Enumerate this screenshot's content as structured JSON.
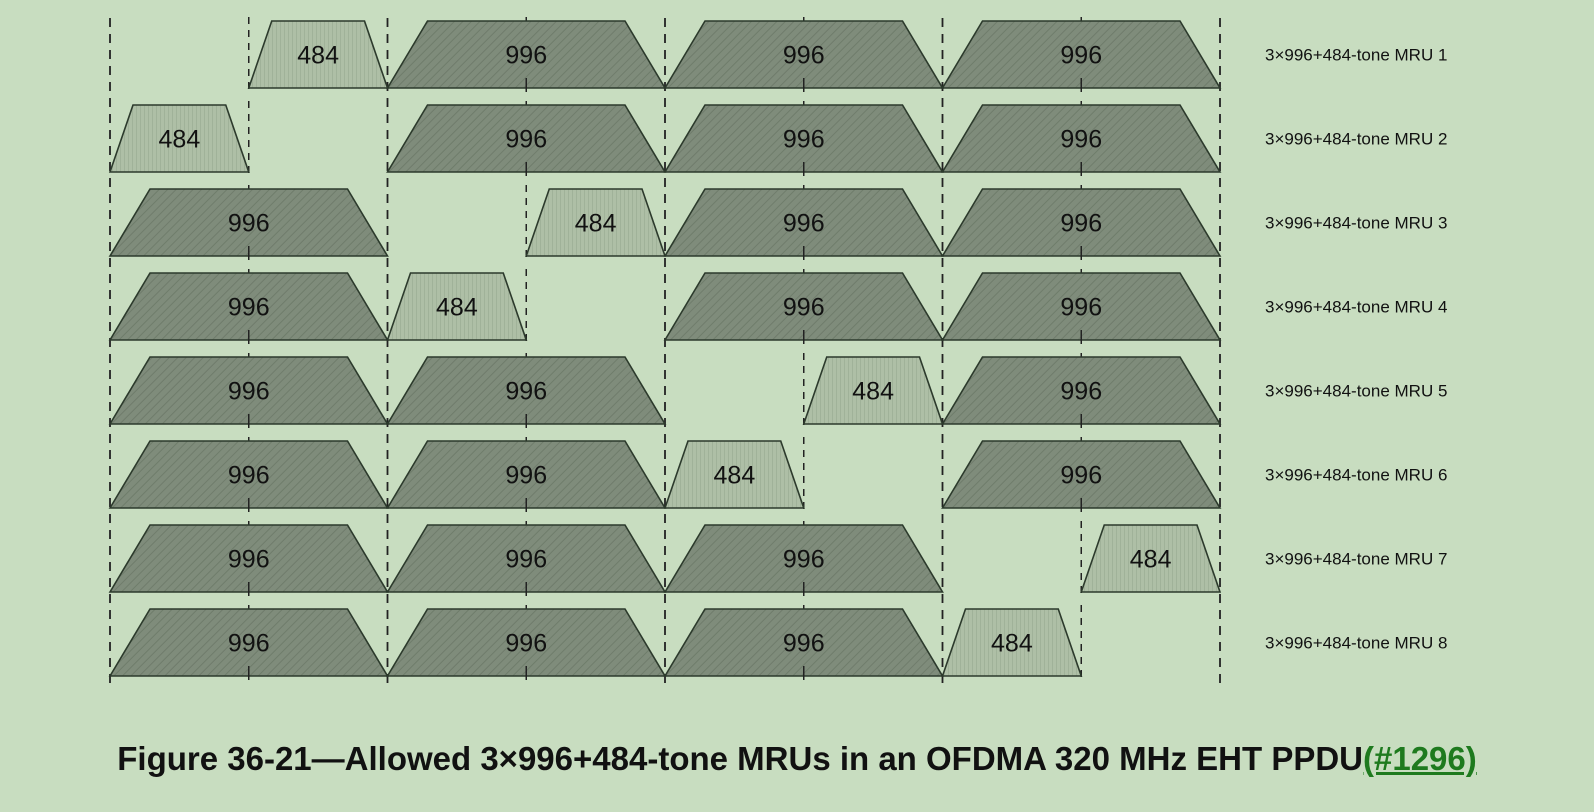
{
  "figure": {
    "caption_main": "Figure 36-21—Allowed 3×996+484-tone MRUs in an OFDMA 320 MHz EHT PPDU",
    "caption_ref": "(#1296)"
  },
  "colors": {
    "background": "#c8ddc0",
    "ru996_fill": "#7f8c7b",
    "ru484_fill": "#aebfa6",
    "stroke": "#2c3a2c",
    "caption_link": "#1e7a1e"
  },
  "ru_labels": {
    "large": "996",
    "small": "484"
  },
  "rows": [
    {
      "label": "3×996+484-tone MRU 1",
      "ru996_blocks": [
        1,
        2,
        3
      ],
      "ru484_slot": 1
    },
    {
      "label": "3×996+484-tone MRU 2",
      "ru996_blocks": [
        1,
        2,
        3
      ],
      "ru484_slot": 0
    },
    {
      "label": "3×996+484-tone MRU 3",
      "ru996_blocks": [
        0,
        2,
        3
      ],
      "ru484_slot": 3
    },
    {
      "label": "3×996+484-tone MRU 4",
      "ru996_blocks": [
        0,
        2,
        3
      ],
      "ru484_slot": 2
    },
    {
      "label": "3×996+484-tone MRU 5",
      "ru996_blocks": [
        0,
        1,
        3
      ],
      "ru484_slot": 5
    },
    {
      "label": "3×996+484-tone MRU 6",
      "ru996_blocks": [
        0,
        1,
        3
      ],
      "ru484_slot": 4
    },
    {
      "label": "3×996+484-tone MRU 7",
      "ru996_blocks": [
        0,
        1,
        2
      ],
      "ru484_slot": 7
    },
    {
      "label": "3×996+484-tone MRU 8",
      "ru996_blocks": [
        0,
        1,
        2
      ],
      "ru484_slot": 6
    }
  ]
}
